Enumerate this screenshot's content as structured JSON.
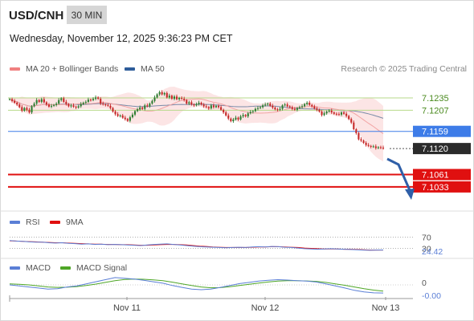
{
  "header": {
    "symbol": "USD/CNH",
    "timeframe": "30 MIN",
    "datetime": "Wednesday, November 12, 2025 9:36:23 PM CET",
    "copyright": "Research © 2025 Trading Central"
  },
  "legends": {
    "main": [
      {
        "label": "MA 20 + Bollinger Bands",
        "color": "#f08080"
      },
      {
        "label": "MA 50",
        "color": "#2e5c9a"
      }
    ],
    "rsi": [
      {
        "label": "RSI",
        "color": "#5b7fd6"
      },
      {
        "label": "9MA",
        "color": "#e01010"
      }
    ],
    "macd": [
      {
        "label": "MACD",
        "color": "#5b7fd6"
      },
      {
        "label": "MACD Signal",
        "color": "#4ea626"
      }
    ]
  },
  "chart_data": [
    {
      "type": "candlestick",
      "title": "USD/CNH 30 MIN",
      "ylim": [
        7.098,
        7.1275
      ],
      "x": [
        "Nov 11",
        "Nov 12",
        "Nov 13"
      ],
      "close_series": [
        7.1232,
        7.1228,
        7.1224,
        7.122,
        7.1214,
        7.1206,
        7.1212,
        7.1208,
        7.1202,
        7.1216,
        7.1222,
        7.123,
        7.1226,
        7.1232,
        7.1225,
        7.122,
        7.1215,
        7.1217,
        7.1219,
        7.1222,
        7.123,
        7.1234,
        7.1226,
        7.1221,
        7.1216,
        7.1218,
        7.1215,
        7.1213,
        7.1216,
        7.1221,
        7.1224,
        7.1226,
        7.1231,
        7.123,
        7.1233,
        7.1236,
        7.1233,
        7.1222,
        7.122,
        7.1219,
        7.1217,
        7.1212,
        7.1204,
        7.1198,
        7.1194,
        7.1195,
        7.119,
        7.1187,
        7.1183,
        7.1191,
        7.1197,
        7.1205,
        7.1209,
        7.1213,
        7.121,
        7.1218,
        7.1216,
        7.1222,
        7.1228,
        7.1236,
        7.1243,
        7.1248,
        7.1243,
        7.1246,
        7.1236,
        7.124,
        7.1233,
        7.1238,
        7.1232,
        7.1235,
        7.1233,
        7.123,
        7.1222,
        7.1225,
        7.122,
        7.1218,
        7.1221,
        7.1224,
        7.122,
        7.1216,
        7.1214,
        7.1211,
        7.1218,
        7.1214,
        7.1217,
        7.1214,
        7.1208,
        7.1202,
        7.1195,
        7.1188,
        7.1182,
        7.1186,
        7.119,
        7.1186,
        7.1193,
        7.1196,
        7.1193,
        7.12,
        7.1203,
        7.1205,
        7.121,
        7.1212,
        7.1214,
        7.1218,
        7.122,
        7.1222,
        7.1217,
        7.1213,
        7.1209,
        7.1208,
        7.121,
        7.1218,
        7.122,
        7.1216,
        7.1214,
        7.121,
        7.1208,
        7.1212,
        7.1214,
        7.1216,
        7.1221,
        7.1224,
        7.1219,
        7.1216,
        7.1211,
        7.1208,
        7.1204,
        7.1196,
        7.12,
        7.1204,
        7.1206,
        7.1202,
        7.1199,
        7.1198,
        7.1197,
        7.1202,
        7.1199,
        7.1194,
        7.1187,
        7.1179,
        7.1164,
        7.1155,
        7.1141,
        7.1138,
        7.1133,
        7.1128,
        7.1126,
        7.1124,
        7.1125,
        7.1121,
        7.1123,
        7.1122,
        7.112
      ],
      "series": [
        {
          "name": "MA 20 + Bollinger Bands"
        },
        {
          "name": "MA 50"
        }
      ],
      "levels": [
        {
          "value": 7.1235,
          "label": "7.1235",
          "color": "#b7d98a",
          "style": "resistance"
        },
        {
          "value": 7.1207,
          "label": "7.1207",
          "color": "#b7d98a",
          "style": "resistance"
        },
        {
          "value": 7.1159,
          "label": "7.1159",
          "color": "#3d7ce8",
          "style": "pivot"
        },
        {
          "value": 7.112,
          "label": "7.1120",
          "color": "#333333",
          "style": "last"
        },
        {
          "value": 7.1061,
          "label": "7.1061",
          "color": "#e01010",
          "style": "target"
        },
        {
          "value": 7.1033,
          "label": "7.1033",
          "color": "#e01010",
          "style": "target"
        }
      ]
    },
    {
      "type": "line",
      "title": "RSI",
      "ylim": [
        0,
        100
      ],
      "ticks": [
        {
          "value": 70,
          "label": "70"
        },
        {
          "value": 30,
          "label": "30"
        }
      ],
      "current_value": "24.42",
      "series": [
        {
          "name": "RSI",
          "values": [
            58,
            56,
            55,
            53,
            52,
            52,
            50,
            49,
            50,
            48,
            47,
            45,
            46,
            44,
            45,
            43,
            44,
            43,
            42,
            41,
            40,
            42,
            44,
            45,
            46,
            44,
            42,
            40,
            38,
            36,
            35,
            34,
            33,
            32,
            33,
            34,
            33,
            35,
            36,
            35,
            37,
            36,
            34,
            33,
            31,
            29,
            28,
            27,
            28,
            29,
            28,
            27,
            26,
            25,
            24,
            23,
            24,
            24.42
          ]
        },
        {
          "name": "9MA",
          "values": [
            57,
            56,
            55,
            54,
            53,
            52,
            51,
            50,
            50,
            49,
            48,
            47,
            46,
            45,
            45,
            44,
            44,
            43,
            43,
            42,
            41,
            41,
            42,
            43,
            44,
            44,
            43,
            42,
            40,
            38,
            37,
            35,
            34,
            33,
            33,
            33,
            33,
            34,
            35,
            35,
            36,
            36,
            35,
            34,
            33,
            31,
            30,
            29,
            28,
            28,
            28,
            27,
            27,
            26,
            25,
            24,
            24,
            24
          ]
        }
      ]
    },
    {
      "type": "line",
      "title": "MACD",
      "ticks": [
        {
          "value": 0,
          "label": "0"
        }
      ],
      "current_value": "-0.00",
      "series": [
        {
          "name": "MACD",
          "values": [
            0,
            -0.5,
            -1,
            -1.5,
            -2,
            -1.8,
            -1,
            -0.5,
            0.5,
            1.5,
            2.5,
            3.5,
            3.2,
            2.8,
            2.2,
            1.5,
            0.8,
            -0.3,
            -1.2,
            -2,
            -2.3,
            -2,
            -1.2,
            -0.3,
            0.6,
            1.2,
            1.8,
            2.2,
            2.5,
            2.3,
            2,
            1.8,
            1.4,
            0.5,
            -0.5,
            -1.5,
            -2.6,
            -3.4,
            -3.8,
            -3.9
          ]
        },
        {
          "name": "MACD Signal",
          "values": [
            0.5,
            0.3,
            0,
            -0.5,
            -1,
            -1.2,
            -1.1,
            -0.8,
            -0.3,
            0.4,
            1.2,
            2,
            2.6,
            2.8,
            2.7,
            2.4,
            2,
            1.3,
            0.5,
            -0.3,
            -1,
            -1.4,
            -1.3,
            -0.9,
            -0.3,
            0.3,
            0.9,
            1.4,
            1.8,
            2,
            2,
            1.9,
            1.7,
            1.2,
            0.5,
            -0.2,
            -1,
            -1.8,
            -2.5,
            -3
          ]
        }
      ]
    }
  ],
  "xaxis": {
    "labels": [
      "Nov 11",
      "Nov 12",
      "Nov 13"
    ]
  }
}
